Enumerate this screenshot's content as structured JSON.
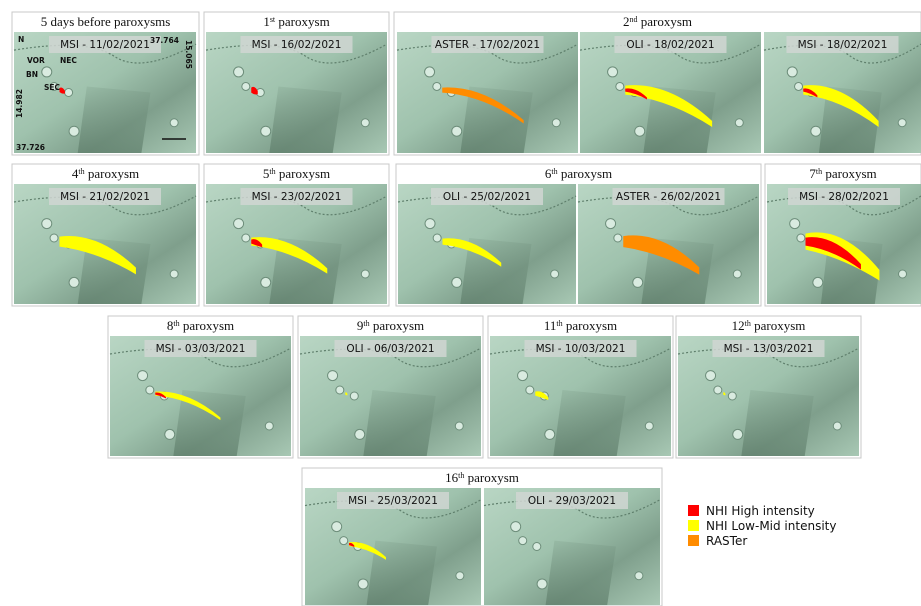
{
  "panels": [
    {
      "title": {
        "text": "5 days before paroxysms"
      },
      "maps": [
        {
          "label": "MSI - 11/02/2021"
        }
      ],
      "annotations": [
        "N",
        "VOR",
        "BN",
        "NEC",
        "SEC",
        "37.764",
        "15.065",
        "14.982",
        "37.726"
      ]
    },
    {
      "title": {
        "ordinal": "1",
        "suffix": "st",
        "text": " paroxysm"
      },
      "maps": [
        {
          "label": "MSI - 16/02/2021"
        }
      ]
    },
    {
      "title": {
        "ordinal": "2",
        "suffix": "nd",
        "text": " paroxysm"
      },
      "maps": [
        {
          "label": "ASTER - 17/02/2021"
        },
        {
          "label": "OLI - 18/02/2021"
        },
        {
          "label": "MSI - 18/02/2021"
        }
      ]
    },
    {
      "title": {
        "ordinal": "4",
        "suffix": "th",
        "text": " paroxysm"
      },
      "maps": [
        {
          "label": "MSI - 21/02/2021"
        }
      ]
    },
    {
      "title": {
        "ordinal": "5",
        "suffix": "th",
        "text": " paroxysm"
      },
      "maps": [
        {
          "label": "MSI - 23/02/2021"
        }
      ]
    },
    {
      "title": {
        "ordinal": "6",
        "suffix": "th",
        "text": " paroxysm"
      },
      "maps": [
        {
          "label": "OLI - 25/02/2021"
        },
        {
          "label": "ASTER - 26/02/2021"
        }
      ]
    },
    {
      "title": {
        "ordinal": "7",
        "suffix": "th",
        "text": " paroxysm"
      },
      "maps": [
        {
          "label": "MSI - 28/02/2021"
        }
      ]
    },
    {
      "title": {
        "ordinal": "8",
        "suffix": "th",
        "text": " paroxysm"
      },
      "maps": [
        {
          "label": "MSI - 03/03/2021"
        }
      ]
    },
    {
      "title": {
        "ordinal": "9",
        "suffix": "th",
        "text": " paroxysm"
      },
      "maps": [
        {
          "label": "OLI - 06/03/2021"
        }
      ]
    },
    {
      "title": {
        "ordinal": "11",
        "suffix": "th",
        "text": " paroxysm"
      },
      "maps": [
        {
          "label": "MSI - 10/03/2021"
        }
      ]
    },
    {
      "title": {
        "ordinal": "12",
        "suffix": "th",
        "text": " paroxysm"
      },
      "maps": [
        {
          "label": "MSI - 13/03/2021"
        }
      ]
    },
    {
      "title": {
        "ordinal": "16",
        "suffix": "th",
        "text": " paroxysm"
      },
      "maps": [
        {
          "label": "MSI - 25/03/2021"
        },
        {
          "label": "OLI - 29/03/2021"
        }
      ]
    }
  ],
  "legend": [
    {
      "label": "NHI High intensity",
      "color": "#ff0000"
    },
    {
      "label": "NHI Low-Mid intensity",
      "color": "#ffff00"
    },
    {
      "label": "RASTer",
      "color": "#ff8c00"
    }
  ]
}
